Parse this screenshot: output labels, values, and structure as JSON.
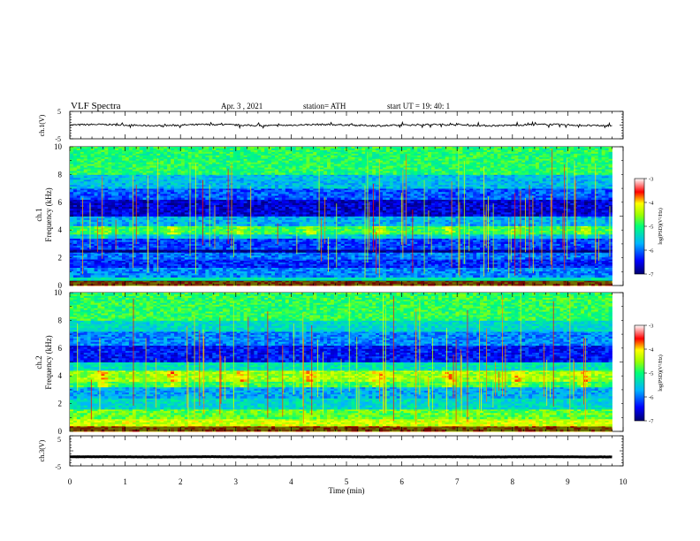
{
  "header": {
    "title": "VLF  Spectra",
    "date": "Apr. 3  , 2021",
    "station": "station= ATH",
    "start": "start  UT  =    19: 40: 1"
  },
  "colors": {
    "colormap": [
      "#00006e",
      "#0000ff",
      "#00b4ff",
      "#00ff78",
      "#9bff00",
      "#ffff00",
      "#ff0000",
      "#ffffff"
    ],
    "line": "#000000"
  },
  "chart_data": [
    {
      "type": "line",
      "name": "ch1-waveform",
      "ylabel": "ch.1(V)",
      "ylim": [
        -5,
        5
      ],
      "yticks": [
        "5",
        "-5"
      ],
      "xlim": [
        0,
        10
      ],
      "series": [
        {
          "baseline": 0,
          "amplitude": 0.6
        }
      ]
    },
    {
      "type": "heatmap",
      "name": "ch1-spectrogram",
      "ylabel": "Frequency  (kHz)",
      "channel": "ch.1",
      "ylim": [
        0,
        10
      ],
      "yticks": [
        "0",
        "2",
        "4",
        "6",
        "8",
        "10"
      ],
      "xlim": [
        0,
        9.8
      ],
      "colorbar": {
        "label": "log(PSD)(V²/Hz)",
        "range": [
          -7,
          -3
        ],
        "ticks": [
          "-3",
          "-4",
          "-5",
          "-6",
          "-7"
        ]
      },
      "bands": [
        {
          "from": 0.0,
          "to": 0.35,
          "level": -3.8
        },
        {
          "from": 0.35,
          "to": 0.6,
          "level": -5.3
        },
        {
          "from": 0.6,
          "to": 1.3,
          "level": -5.9
        },
        {
          "from": 1.3,
          "to": 1.9,
          "level": -6.3
        },
        {
          "from": 1.9,
          "to": 2.4,
          "level": -6.0
        },
        {
          "from": 2.4,
          "to": 2.6,
          "level": -6.9
        },
        {
          "from": 2.6,
          "to": 3.4,
          "level": -6.2
        },
        {
          "from": 3.4,
          "to": 3.7,
          "level": -5.6
        },
        {
          "from": 3.7,
          "to": 4.3,
          "level": -4.9
        },
        {
          "from": 4.3,
          "to": 5.0,
          "level": -5.7
        },
        {
          "from": 5.0,
          "to": 6.2,
          "level": -6.6
        },
        {
          "from": 6.2,
          "to": 7.0,
          "level": -6.1
        },
        {
          "from": 7.0,
          "to": 8.0,
          "level": -5.6
        },
        {
          "from": 8.0,
          "to": 10.0,
          "level": -4.95
        }
      ],
      "bursts_min": [
        0.6,
        1.85,
        3.1,
        4.35,
        5.6,
        6.85,
        8.1,
        9.3
      ],
      "burst_center_khz": 4.0
    },
    {
      "type": "heatmap",
      "name": "ch2-spectrogram",
      "ylabel": "Frequency  (kHz)",
      "channel": "ch.2",
      "ylim": [
        0,
        10
      ],
      "yticks": [
        "0",
        "2",
        "4",
        "6",
        "8",
        "10"
      ],
      "xlim": [
        0,
        9.8
      ],
      "colorbar": {
        "label": "log(PSD)(V²/Hz)",
        "range": [
          -7,
          -3
        ],
        "ticks": [
          "-3",
          "-4",
          "-5",
          "-6",
          "-7"
        ]
      },
      "bands": [
        {
          "from": 0.0,
          "to": 0.4,
          "level": -3.9
        },
        {
          "from": 0.4,
          "to": 0.9,
          "level": -4.3
        },
        {
          "from": 0.9,
          "to": 1.6,
          "level": -4.7
        },
        {
          "from": 1.6,
          "to": 2.4,
          "level": -5.4
        },
        {
          "from": 2.4,
          "to": 3.2,
          "level": -5.7
        },
        {
          "from": 3.2,
          "to": 3.6,
          "level": -4.9
        },
        {
          "from": 3.6,
          "to": 4.4,
          "level": -4.5
        },
        {
          "from": 4.4,
          "to": 5.0,
          "level": -5.3
        },
        {
          "from": 5.0,
          "to": 6.2,
          "level": -6.4
        },
        {
          "from": 6.2,
          "to": 7.2,
          "level": -5.9
        },
        {
          "from": 7.2,
          "to": 8.0,
          "level": -5.4
        },
        {
          "from": 8.0,
          "to": 10.0,
          "level": -4.9
        }
      ],
      "bursts_min": [
        0.6,
        1.85,
        3.1,
        4.35,
        5.6,
        6.85,
        8.1,
        9.3
      ],
      "burst_center_khz": 4.0
    },
    {
      "type": "line",
      "name": "ch3-waveform",
      "ylabel": "ch.3(V)",
      "xlabel": "Time  (min)",
      "ylim": [
        -5,
        5
      ],
      "yticks": [
        "5",
        "-5"
      ],
      "xlim": [
        0,
        10
      ],
      "xticks": [
        "0",
        "1",
        "2",
        "3",
        "4",
        "5",
        "6",
        "7",
        "8",
        "9",
        "10"
      ],
      "series": [
        {
          "baseline": -2.0,
          "amplitude": 0.1
        }
      ]
    }
  ]
}
